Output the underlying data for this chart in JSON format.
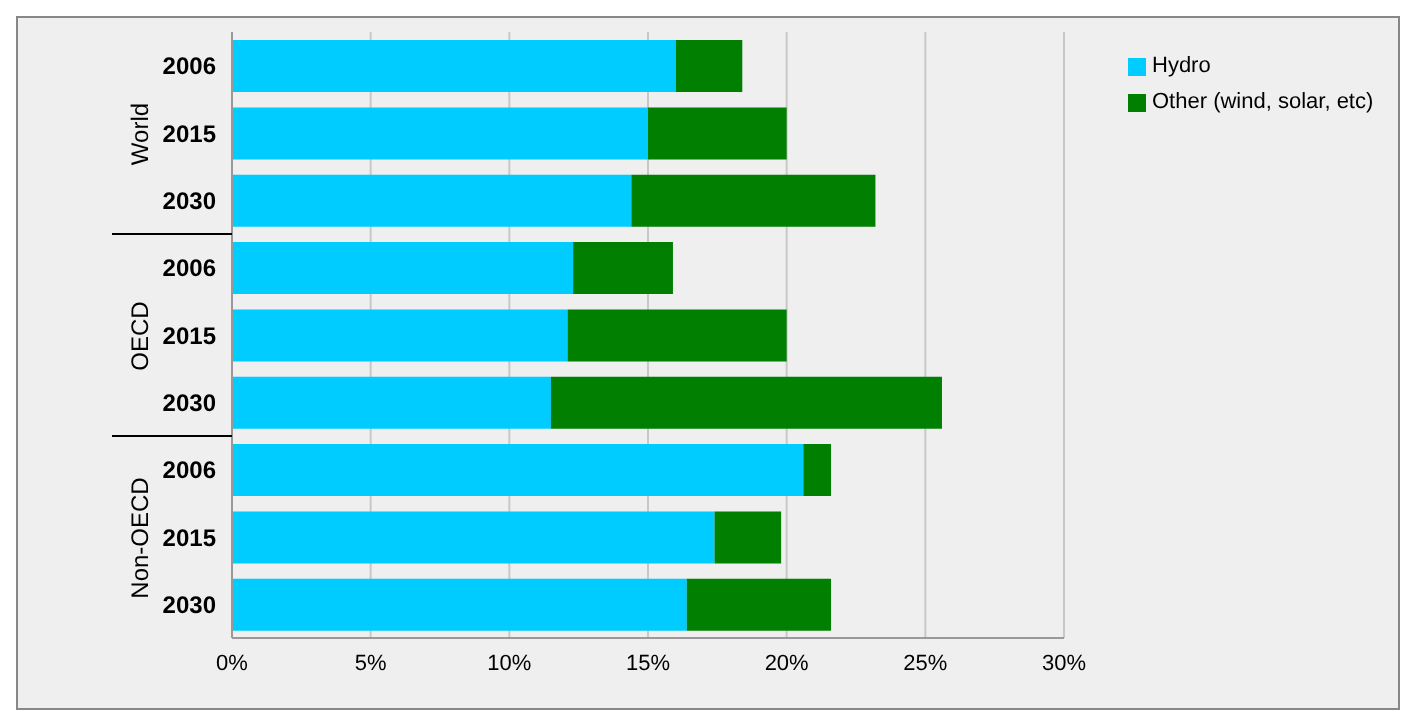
{
  "chart_data": {
    "type": "bar",
    "orientation": "horizontal",
    "stacked": true,
    "categories": [
      "2006",
      "2015",
      "2030",
      "2006",
      "2015",
      "2030",
      "2006",
      "2015",
      "2030"
    ],
    "annotations": [
      "World",
      "OECD",
      "Non-OECD"
    ],
    "series": [
      {
        "name": "Hydro",
        "color": "#00ccff",
        "values": [
          16.0,
          15.0,
          14.4,
          12.3,
          12.1,
          11.5,
          20.6,
          17.4,
          16.4
        ]
      },
      {
        "name": "Other (wind, solar, etc)",
        "color": "#007f00",
        "values": [
          2.4,
          5.0,
          8.8,
          3.6,
          7.9,
          14.1,
          1.0,
          2.4,
          5.2
        ]
      }
    ],
    "xlim": [
      0,
      30
    ],
    "xticks": [
      {
        "value": 0,
        "label": "0%"
      },
      {
        "value": 5,
        "label": "5%"
      },
      {
        "value": 10,
        "label": "10%"
      },
      {
        "value": 15,
        "label": "15%"
      },
      {
        "value": 20,
        "label": "20%"
      },
      {
        "value": 25,
        "label": "25%"
      },
      {
        "value": 30,
        "label": "30%"
      }
    ],
    "grid": "x",
    "legend": "top right"
  }
}
